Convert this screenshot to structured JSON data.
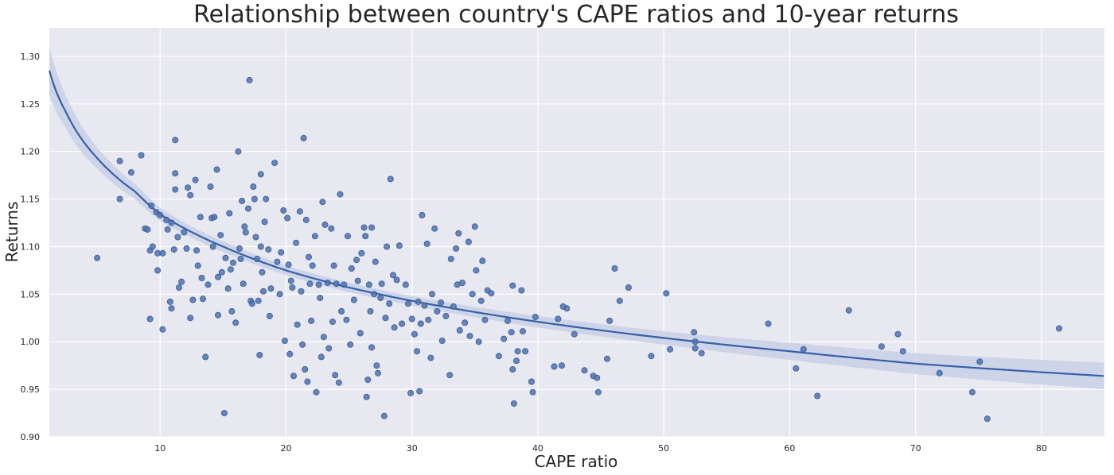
{
  "colors": {
    "plot_background": "#e8e8f1",
    "series": "#4c72b0",
    "fit_line": "#3560a8",
    "confidence_band": "#c8d0e5"
  },
  "chart_data": {
    "type": "scatter",
    "title": "Relationship between country's CAPE ratios and 10-year returns",
    "xlabel": "CAPE ratio",
    "ylabel": "Returns",
    "xlim": [
      1.2,
      85
    ],
    "ylim": [
      0.9,
      1.33
    ],
    "xticks": [
      10,
      20,
      30,
      40,
      50,
      60,
      70,
      80
    ],
    "yticks": [
      0.9,
      0.95,
      1.0,
      1.05,
      1.1,
      1.15,
      1.2,
      1.25,
      1.3
    ],
    "ytick_labels": [
      "0.90",
      "0.95",
      "1.00",
      "1.05",
      "1.10",
      "1.15",
      "1.20",
      "1.25",
      "1.30"
    ],
    "grid": true,
    "legend": "none",
    "fit": {
      "form": "logarithmic",
      "points": [
        [
          1.2,
          1.285
        ],
        [
          2.5,
          1.242
        ],
        [
          5,
          1.193
        ],
        [
          8,
          1.158
        ],
        [
          10,
          1.134
        ],
        [
          15,
          1.1
        ],
        [
          20,
          1.075
        ],
        [
          25,
          1.057
        ],
        [
          30,
          1.043
        ],
        [
          40,
          1.021
        ],
        [
          50,
          1.004
        ],
        [
          60,
          0.99
        ],
        [
          70,
          0.977
        ],
        [
          80,
          0.968
        ],
        [
          85,
          0.964
        ]
      ],
      "band": [
        [
          1.2,
          0.025
        ],
        [
          2.5,
          0.017
        ],
        [
          5,
          0.011
        ],
        [
          8,
          0.008
        ],
        [
          12,
          0.006
        ],
        [
          20,
          0.005
        ],
        [
          30,
          0.005
        ],
        [
          40,
          0.006
        ],
        [
          50,
          0.007
        ],
        [
          60,
          0.009
        ],
        [
          70,
          0.011
        ],
        [
          85,
          0.014
        ]
      ]
    },
    "points": [
      [
        5.0,
        1.088
      ],
      [
        6.8,
        1.15
      ],
      [
        6.8,
        1.19
      ],
      [
        7.7,
        1.178
      ],
      [
        8.5,
        1.196
      ],
      [
        8.8,
        1.119
      ],
      [
        9.0,
        1.118
      ],
      [
        9.2,
        1.024
      ],
      [
        9.3,
        1.143
      ],
      [
        9.2,
        1.096
      ],
      [
        9.4,
        1.1
      ],
      [
        9.7,
        1.136
      ],
      [
        9.8,
        1.075
      ],
      [
        9.8,
        1.093
      ],
      [
        10.0,
        1.133
      ],
      [
        10.2,
        1.013
      ],
      [
        10.2,
        1.093
      ],
      [
        10.5,
        1.128
      ],
      [
        10.6,
        1.118
      ],
      [
        10.8,
        1.042
      ],
      [
        10.9,
        1.035
      ],
      [
        10.9,
        1.125
      ],
      [
        11.1,
        1.097
      ],
      [
        11.2,
        1.212
      ],
      [
        11.2,
        1.16
      ],
      [
        11.2,
        1.177
      ],
      [
        11.4,
        1.11
      ],
      [
        11.5,
        1.057
      ],
      [
        11.7,
        1.063
      ],
      [
        11.9,
        1.115
      ],
      [
        12.1,
        1.098
      ],
      [
        12.2,
        1.162
      ],
      [
        12.4,
        1.154
      ],
      [
        12.4,
        1.025
      ],
      [
        12.6,
        1.044
      ],
      [
        12.8,
        1.17
      ],
      [
        12.9,
        1.096
      ],
      [
        13.0,
        1.08
      ],
      [
        13.3,
        1.067
      ],
      [
        13.2,
        1.131
      ],
      [
        13.4,
        1.045
      ],
      [
        13.6,
        0.984
      ],
      [
        13.8,
        1.06
      ],
      [
        14.0,
        1.163
      ],
      [
        14.1,
        1.13
      ],
      [
        14.2,
        1.1
      ],
      [
        14.3,
        1.131
      ],
      [
        14.5,
        1.181
      ],
      [
        14.6,
        1.028
      ],
      [
        14.6,
        1.068
      ],
      [
        14.8,
        1.112
      ],
      [
        14.9,
        1.073
      ],
      [
        15.1,
        0.925
      ],
      [
        15.2,
        1.088
      ],
      [
        15.4,
        1.056
      ],
      [
        15.5,
        1.135
      ],
      [
        15.6,
        1.076
      ],
      [
        15.7,
        1.032
      ],
      [
        15.8,
        1.083
      ],
      [
        16.0,
        1.02
      ],
      [
        16.2,
        1.2
      ],
      [
        16.3,
        1.098
      ],
      [
        16.4,
        1.087
      ],
      [
        16.5,
        1.148
      ],
      [
        16.6,
        1.061
      ],
      [
        16.7,
        1.121
      ],
      [
        16.8,
        1.115
      ],
      [
        17.0,
        1.14
      ],
      [
        17.1,
        1.275
      ],
      [
        17.2,
        1.043
      ],
      [
        17.3,
        1.04
      ],
      [
        17.4,
        1.163
      ],
      [
        17.5,
        1.15
      ],
      [
        17.6,
        1.11
      ],
      [
        17.7,
        1.087
      ],
      [
        17.8,
        1.043
      ],
      [
        17.9,
        0.986
      ],
      [
        18.0,
        1.176
      ],
      [
        18.0,
        1.1
      ],
      [
        18.1,
        1.073
      ],
      [
        18.2,
        1.053
      ],
      [
        18.3,
        1.126
      ],
      [
        18.4,
        1.15
      ],
      [
        18.6,
        1.097
      ],
      [
        18.7,
        1.027
      ],
      [
        18.8,
        1.056
      ],
      [
        19.1,
        1.188
      ],
      [
        19.3,
        1.084
      ],
      [
        19.5,
        1.05
      ],
      [
        19.6,
        1.094
      ],
      [
        19.8,
        1.138
      ],
      [
        19.9,
        1.001
      ],
      [
        20.1,
        1.13
      ],
      [
        20.2,
        1.081
      ],
      [
        20.3,
        0.987
      ],
      [
        20.4,
        1.064
      ],
      [
        20.5,
        1.057
      ],
      [
        20.6,
        0.964
      ],
      [
        20.8,
        1.104
      ],
      [
        20.9,
        1.018
      ],
      [
        21.1,
        1.137
      ],
      [
        21.2,
        1.053
      ],
      [
        21.3,
        0.997
      ],
      [
        21.4,
        1.214
      ],
      [
        21.5,
        0.971
      ],
      [
        21.6,
        1.128
      ],
      [
        21.7,
        0.958
      ],
      [
        21.8,
        1.089
      ],
      [
        21.9,
        1.061
      ],
      [
        22.0,
        1.022
      ],
      [
        22.1,
        1.08
      ],
      [
        22.3,
        1.111
      ],
      [
        22.4,
        0.947
      ],
      [
        22.6,
        1.06
      ],
      [
        22.7,
        1.046
      ],
      [
        22.8,
        0.984
      ],
      [
        22.9,
        1.147
      ],
      [
        23.0,
        1.005
      ],
      [
        23.1,
        1.123
      ],
      [
        23.3,
        1.062
      ],
      [
        23.4,
        0.993
      ],
      [
        23.6,
        1.119
      ],
      [
        23.7,
        1.021
      ],
      [
        23.8,
        1.08
      ],
      [
        23.9,
        0.965
      ],
      [
        24.0,
        1.061
      ],
      [
        24.2,
        0.957
      ],
      [
        24.3,
        1.155
      ],
      [
        24.4,
        1.032
      ],
      [
        24.6,
        1.06
      ],
      [
        24.8,
        1.023
      ],
      [
        24.9,
        1.111
      ],
      [
        25.1,
        0.997
      ],
      [
        25.2,
        1.077
      ],
      [
        25.4,
        1.044
      ],
      [
        25.6,
        1.086
      ],
      [
        25.7,
        1.064
      ],
      [
        25.9,
        1.009
      ],
      [
        26.0,
        1.093
      ],
      [
        26.2,
        1.12
      ],
      [
        26.3,
        1.111
      ],
      [
        26.4,
        0.942
      ],
      [
        26.5,
        0.96
      ],
      [
        26.6,
        1.06
      ],
      [
        26.7,
        1.032
      ],
      [
        26.8,
        1.12
      ],
      [
        26.8,
        0.994
      ],
      [
        27.0,
        1.05
      ],
      [
        27.1,
        1.084
      ],
      [
        27.2,
        0.975
      ],
      [
        27.3,
        0.967
      ],
      [
        27.5,
        1.046
      ],
      [
        27.6,
        1.061
      ],
      [
        27.8,
        0.922
      ],
      [
        27.9,
        1.025
      ],
      [
        28.0,
        1.1
      ],
      [
        28.2,
        1.04
      ],
      [
        28.3,
        1.171
      ],
      [
        28.5,
        1.07
      ],
      [
        28.6,
        1.015
      ],
      [
        28.8,
        1.065
      ],
      [
        29.0,
        1.101
      ],
      [
        29.2,
        1.019
      ],
      [
        29.5,
        1.06
      ],
      [
        29.7,
        1.04
      ],
      [
        29.9,
        0.946
      ],
      [
        30.0,
        1.024
      ],
      [
        30.2,
        1.008
      ],
      [
        30.4,
        0.99
      ],
      [
        30.5,
        1.042
      ],
      [
        30.6,
        0.948
      ],
      [
        30.7,
        1.019
      ],
      [
        30.8,
        1.133
      ],
      [
        31.0,
        1.038
      ],
      [
        31.2,
        1.103
      ],
      [
        31.3,
        1.023
      ],
      [
        31.5,
        0.983
      ],
      [
        31.6,
        1.05
      ],
      [
        31.8,
        1.119
      ],
      [
        32.0,
        1.032
      ],
      [
        32.3,
        1.041
      ],
      [
        32.4,
        1.001
      ],
      [
        32.7,
        1.027
      ],
      [
        33.0,
        0.965
      ],
      [
        33.1,
        1.087
      ],
      [
        33.3,
        1.037
      ],
      [
        33.5,
        1.098
      ],
      [
        33.6,
        1.06
      ],
      [
        33.7,
        1.114
      ],
      [
        33.8,
        1.012
      ],
      [
        34.0,
        1.062
      ],
      [
        34.2,
        1.02
      ],
      [
        34.5,
        1.105
      ],
      [
        34.6,
        1.006
      ],
      [
        34.8,
        1.05
      ],
      [
        35.0,
        1.121
      ],
      [
        35.1,
        1.075
      ],
      [
        35.3,
        1.0
      ],
      [
        35.5,
        1.043
      ],
      [
        35.6,
        1.085
      ],
      [
        35.8,
        1.023
      ],
      [
        36.0,
        1.054
      ],
      [
        36.3,
        1.051
      ],
      [
        36.9,
        0.985
      ],
      [
        37.3,
        1.003
      ],
      [
        37.6,
        1.022
      ],
      [
        37.9,
        1.01
      ],
      [
        38.0,
        1.059
      ],
      [
        38.0,
        0.971
      ],
      [
        38.1,
        0.935
      ],
      [
        38.3,
        0.98
      ],
      [
        38.4,
        0.99
      ],
      [
        38.7,
        1.054
      ],
      [
        38.8,
        1.011
      ],
      [
        39.0,
        0.99
      ],
      [
        39.5,
        0.958
      ],
      [
        39.6,
        0.947
      ],
      [
        39.8,
        1.026
      ],
      [
        41.3,
        0.974
      ],
      [
        41.6,
        1.024
      ],
      [
        41.9,
        0.975
      ],
      [
        42.0,
        1.037
      ],
      [
        42.3,
        1.035
      ],
      [
        42.9,
        1.008
      ],
      [
        43.7,
        0.97
      ],
      [
        44.4,
        0.964
      ],
      [
        44.7,
        0.962
      ],
      [
        44.8,
        0.947
      ],
      [
        45.5,
        0.982
      ],
      [
        45.7,
        1.022
      ],
      [
        46.1,
        1.077
      ],
      [
        46.5,
        1.043
      ],
      [
        47.2,
        1.057
      ],
      [
        49.0,
        0.985
      ],
      [
        50.2,
        1.051
      ],
      [
        50.5,
        0.992
      ],
      [
        52.4,
        1.01
      ],
      [
        52.5,
        0.993
      ],
      [
        52.5,
        1.0
      ],
      [
        53.0,
        0.988
      ],
      [
        58.3,
        1.019
      ],
      [
        60.5,
        0.972
      ],
      [
        61.1,
        0.992
      ],
      [
        62.2,
        0.943
      ],
      [
        64.7,
        1.033
      ],
      [
        67.3,
        0.995
      ],
      [
        68.6,
        1.008
      ],
      [
        69.0,
        0.99
      ],
      [
        71.9,
        0.967
      ],
      [
        74.5,
        0.947
      ],
      [
        75.1,
        0.979
      ],
      [
        75.7,
        0.919
      ],
      [
        81.4,
        1.014
      ]
    ]
  }
}
